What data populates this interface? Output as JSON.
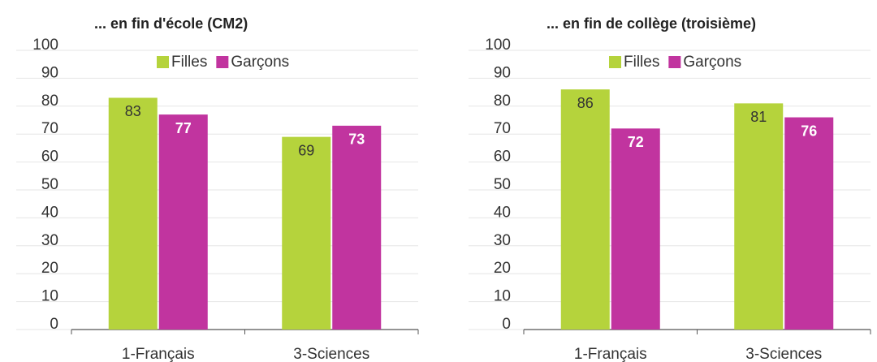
{
  "chart_data": [
    {
      "type": "bar",
      "title": "... en fin d'école (CM2)",
      "categories": [
        "1-Français",
        "3-Sciences"
      ],
      "series": [
        {
          "name": "Filles",
          "color": "#b5d33c",
          "values": [
            83,
            69
          ]
        },
        {
          "name": "Garçons",
          "color": "#c1349f",
          "values": [
            77,
            73
          ]
        }
      ],
      "ylim": [
        0,
        100
      ],
      "yticks": [
        0,
        10,
        20,
        30,
        40,
        50,
        60,
        70,
        80,
        90,
        100
      ],
      "grid": true,
      "legend": "top"
    },
    {
      "type": "bar",
      "title": "... en fin de collège (troisième)",
      "categories": [
        "1-Français",
        "3-Sciences"
      ],
      "series": [
        {
          "name": "Filles",
          "color": "#b5d33c",
          "values": [
            86,
            81
          ]
        },
        {
          "name": "Garçons",
          "color": "#c1349f",
          "values": [
            72,
            76
          ]
        }
      ],
      "ylim": [
        0,
        100
      ],
      "yticks": [
        0,
        10,
        20,
        30,
        40,
        50,
        60,
        70,
        80,
        90,
        100
      ],
      "grid": true,
      "legend": "top"
    }
  ]
}
